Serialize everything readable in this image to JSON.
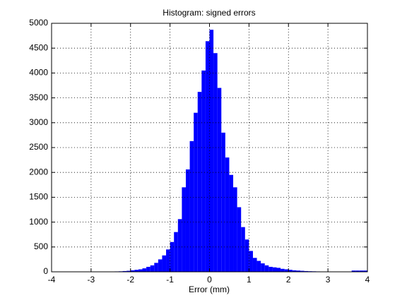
{
  "chart_data": {
    "type": "histogram",
    "title": "Histogram: signed errors",
    "x_label": "Error (mm)",
    "bins": [
      -4.0,
      -3.9,
      -3.8,
      -3.7,
      -3.6,
      -3.5,
      -3.4,
      -3.3,
      -3.2,
      -3.1,
      -3.0,
      -2.9,
      -2.8,
      -2.7,
      -2.6,
      -2.5,
      -2.4,
      -2.3,
      -2.2,
      -2.1,
      -2.0,
      -1.9,
      -1.8,
      -1.7,
      -1.6,
      -1.5,
      -1.4,
      -1.3,
      -1.2,
      -1.1,
      -1.0,
      -0.9,
      -0.8,
      -0.7,
      -0.6,
      -0.5,
      -0.4,
      -0.3,
      -0.2,
      -0.1,
      0.0,
      0.1,
      0.2,
      0.3,
      0.4,
      0.5,
      0.6,
      0.7,
      0.8,
      0.9,
      1.0,
      1.1,
      1.2,
      1.3,
      1.4,
      1.5,
      1.6,
      1.7,
      1.8,
      1.9,
      2.0,
      2.1,
      2.2,
      2.3,
      2.4,
      2.5,
      2.6,
      2.7,
      2.8,
      2.9,
      3.0,
      3.1,
      3.2,
      3.3,
      3.4,
      3.5,
      3.6,
      3.7,
      3.8,
      3.9,
      4.0
    ],
    "values": [
      0,
      0,
      0,
      0,
      0,
      0,
      0,
      0,
      1,
      1,
      2,
      2,
      3,
      4,
      5,
      6,
      8,
      10,
      15,
      20,
      30,
      40,
      50,
      70,
      100,
      130,
      180,
      250,
      330,
      450,
      600,
      800,
      1060,
      1700,
      2060,
      2630,
      3200,
      3620,
      4050,
      4640,
      4870,
      4400,
      3700,
      2800,
      2300,
      1950,
      1700,
      1300,
      900,
      650,
      420,
      280,
      220,
      170,
      130,
      100,
      90,
      80,
      60,
      50,
      40,
      30,
      25,
      20,
      15,
      12,
      10,
      8,
      7,
      6,
      5,
      5,
      4,
      4,
      3,
      3,
      25,
      25,
      25,
      25
    ],
    "color": "#0000ff",
    "xlim": [
      -4,
      4
    ],
    "xticks": [
      -4,
      -3,
      -2,
      -1,
      0,
      1,
      2,
      3,
      4
    ],
    "ylim": [
      0,
      5000
    ],
    "yticks": [
      0,
      500,
      1000,
      1500,
      2000,
      2500,
      3000,
      3500,
      4000,
      4500,
      5000
    ],
    "grid": true
  }
}
